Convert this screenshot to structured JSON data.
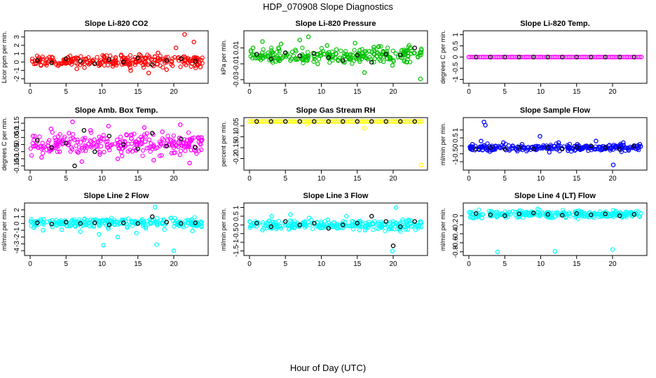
{
  "figure": {
    "title": "HDP_070908  Slope Diagnostics",
    "xlabel": "Hour of Day (UTC)"
  },
  "chart_data": [
    {
      "type": "scatter",
      "title": "Slope Li-820 CO2",
      "ylabel": "Licor ppm per min.",
      "xlim": [
        0,
        24
      ],
      "ylim": [
        -2.2,
        3.4
      ],
      "xticks": [
        0,
        5,
        10,
        15,
        20
      ],
      "yticks": [
        -2,
        -1,
        0,
        1,
        2,
        3
      ],
      "color": "#ff0000",
      "spread": 0.5,
      "series": [
        {
          "name": "primary",
          "color": "#ff0000",
          "x": [
            0.3,
            1.5,
            2.7,
            4.0,
            5.2,
            6.5,
            7.8,
            9.0,
            10.3,
            11.5,
            12.8,
            14.0,
            15.2,
            16.5,
            17.8,
            19.0,
            20.3,
            21.5,
            22.8,
            23.7
          ],
          "y": [
            0.1,
            -0.4,
            0.6,
            -0.3,
            0.2,
            -0.8,
            0.4,
            -0.2,
            0.7,
            -0.5,
            0.3,
            -1.0,
            0.9,
            -1.3,
            1.1,
            -0.9,
            1.7,
            3.3,
            2.4,
            -0.6
          ]
        },
        {
          "name": "reference",
          "color": "#000000",
          "x": [
            1,
            3,
            5,
            7,
            9,
            11,
            13,
            15,
            17,
            19,
            21,
            23
          ],
          "y": [
            0.2,
            -0.1,
            0.4,
            0.1,
            -0.2,
            0.3,
            0.0,
            0.5,
            -0.3,
            0.2,
            0.4,
            0.1
          ]
        }
      ]
    },
    {
      "type": "scatter",
      "title": "Slope Li-820 Pressure",
      "ylabel": "kPa per min.",
      "xlim": [
        0,
        24
      ],
      "ylim": [
        -0.031,
        0.028
      ],
      "xticks": [
        0,
        5,
        10,
        15,
        20
      ],
      "yticks": [
        -0.03,
        -0.01,
        0.01
      ],
      "color": "#00c000",
      "spread": 0.008,
      "series": [
        {
          "name": "primary",
          "color": "#00c000",
          "x": [
            0.5,
            1.8,
            3.1,
            4.4,
            5.7,
            7.0,
            8.2,
            9.5,
            10.8,
            12.1,
            13.4,
            14.7,
            16.0,
            17.3,
            18.6,
            19.9,
            21.2,
            22.5,
            23.8
          ],
          "y": [
            0.01,
            0.018,
            0.004,
            0.015,
            -0.006,
            0.02,
            0.024,
            -0.01,
            0.013,
            0.008,
            -0.004,
            0.016,
            -0.021,
            0.011,
            0.005,
            -0.012,
            0.007,
            0.003,
            -0.029
          ]
        },
        {
          "name": "reference",
          "color": "#000000",
          "x": [
            1,
            3,
            5,
            7,
            9,
            11,
            13,
            15,
            17,
            19,
            21,
            23
          ],
          "y": [
            0.002,
            -0.004,
            0.004,
            0.0,
            0.003,
            -0.002,
            -0.006,
            0.001,
            -0.008,
            0.002,
            0.001,
            0.01
          ]
        }
      ]
    },
    {
      "type": "scatter",
      "title": "Slope Li-820 Temp.",
      "ylabel": "degrees C per min.",
      "xlim": [
        0,
        24
      ],
      "ylim": [
        -1.05,
        1.05
      ],
      "xticks": [
        0,
        5,
        10,
        15,
        20
      ],
      "yticks": [
        -1.0,
        -0.5,
        0.0,
        0.5,
        1.0
      ],
      "color": "#ff00ff",
      "spread": 0.0,
      "series": [
        {
          "name": "primary",
          "color": "#ff00ff",
          "x": [
            0,
            2,
            4,
            6,
            8,
            10,
            12,
            14,
            16,
            18,
            20,
            22,
            24
          ],
          "y": [
            0,
            0,
            0,
            0,
            0,
            0,
            0,
            0,
            0,
            0,
            0,
            0,
            0
          ]
        },
        {
          "name": "reference",
          "color": "#000000",
          "x": [
            1,
            3,
            5,
            7,
            9,
            11,
            13,
            15,
            17,
            19,
            21,
            23
          ],
          "y": [
            0,
            0,
            0,
            0,
            0,
            0,
            0,
            0,
            0,
            0,
            0,
            0
          ]
        }
      ]
    },
    {
      "type": "scatter",
      "title": "Slope Amb. Box Temp.",
      "ylabel": "degrees C per min.",
      "xlim": [
        0,
        24
      ],
      "ylim": [
        -0.16,
        0.17
      ],
      "xticks": [
        0,
        5,
        10,
        15,
        20
      ],
      "yticks": [
        -0.15,
        -0.1,
        -0.05,
        0.0,
        0.05,
        0.1,
        0.15
      ],
      "color": "#ff00ff",
      "spread": 0.05,
      "series": [
        {
          "name": "primary",
          "color": "#ff00ff",
          "x": [
            0.4,
            1.6,
            2.9,
            4.1,
            5.4,
            5.9,
            7.2,
            8.4,
            9.7,
            10.9,
            12.2,
            13.4,
            14.7,
            15.9,
            17.2,
            18.4,
            19.7,
            20.9,
            22.2,
            23.4
          ],
          "y": [
            0.06,
            -0.09,
            0.11,
            -0.05,
            0.08,
            0.16,
            -0.12,
            0.1,
            -0.07,
            0.13,
            -0.1,
            0.07,
            -0.04,
            0.12,
            -0.11,
            0.09,
            -0.06,
            0.14,
            -0.13,
            0.05
          ]
        },
        {
          "name": "reference",
          "color": "#000000",
          "x": [
            1,
            3,
            5,
            6.2,
            7.5,
            9,
            11,
            13,
            15,
            17,
            19,
            21,
            23
          ],
          "y": [
            0.03,
            -0.02,
            0.01,
            -0.15,
            0.1,
            -0.05,
            0.06,
            0.0,
            -0.03,
            0.08,
            -0.01,
            0.04,
            -0.02
          ]
        }
      ]
    },
    {
      "type": "scatter",
      "title": "Slope Gas Stream RH",
      "ylabel": "percent per min.",
      "xlim": [
        0,
        24
      ],
      "ylim": [
        -0.24,
        -0.025
      ],
      "xticks": [
        0,
        5,
        10,
        15,
        20
      ],
      "yticks": [
        -0.2,
        -0.15,
        -0.1,
        -0.05
      ],
      "color": "#ffff00",
      "spread": 0.0,
      "series": [
        {
          "name": "primary",
          "color": "#ffff00",
          "x": [
            0.0,
            2.0,
            4.0,
            6.0,
            8.0,
            10.0,
            12.0,
            14.0,
            16.0,
            18.0,
            20.0,
            22.0,
            24.0,
            8.0,
            16.0,
            23.9
          ],
          "y": [
            -0.03,
            -0.03,
            -0.03,
            -0.03,
            -0.03,
            -0.03,
            -0.03,
            -0.03,
            -0.03,
            -0.03,
            -0.03,
            -0.03,
            -0.03,
            -0.04,
            -0.06,
            -0.23
          ]
        },
        {
          "name": "reference",
          "color": "#000000",
          "x": [
            1,
            3,
            5,
            7,
            9,
            11,
            13,
            15,
            17,
            19,
            21,
            23
          ],
          "y": [
            -0.03,
            -0.03,
            -0.03,
            -0.03,
            -0.03,
            -0.03,
            -0.03,
            -0.03,
            -0.03,
            -0.03,
            -0.03,
            -0.03
          ]
        }
      ]
    },
    {
      "type": "scatter",
      "title": "Slope Sample Flow",
      "ylabel": "ml/min per min.",
      "xlim": [
        0,
        24
      ],
      "ylim": [
        -1.35,
        1.6
      ],
      "xticks": [
        0,
        5,
        10,
        15,
        20
      ],
      "yticks": [
        -1.0,
        -0.5,
        0.0,
        0.5,
        1.0
      ],
      "color": "#0000ff",
      "spread": 0.15,
      "series": [
        {
          "name": "primary",
          "color": "#0000ff",
          "x": [
            0.5,
            1.7,
            2.1,
            2.3,
            3.5,
            4.8,
            6.1,
            7.4,
            8.7,
            9.9,
            11.2,
            12.5,
            13.8,
            15.1,
            16.4,
            17.7,
            19.0,
            20.1,
            21.5,
            22.8,
            23.8
          ],
          "y": [
            0.1,
            0.3,
            1.5,
            1.3,
            -0.2,
            0.2,
            0.0,
            0.1,
            -0.1,
            0.6,
            -0.4,
            0.2,
            -0.3,
            0.1,
            0.0,
            0.3,
            -0.2,
            -1.2,
            0.2,
            -0.1,
            0.1
          ]
        },
        {
          "name": "reference",
          "color": "#000000",
          "x": [
            1,
            3,
            5,
            7,
            9,
            11,
            13,
            15,
            17,
            19,
            21,
            23
          ],
          "y": [
            -0.2,
            -0.1,
            -0.2,
            -0.1,
            -0.2,
            -0.1,
            -0.2,
            -0.1,
            0.0,
            -0.1,
            -0.2,
            0.0
          ]
        }
      ]
    },
    {
      "type": "scatter",
      "title": "Slope Line 2 Flow",
      "ylabel": "ml/min per min.",
      "xlim": [
        0,
        24
      ],
      "ylim": [
        -4.3,
        2.6
      ],
      "xticks": [
        0,
        5,
        10,
        15,
        20
      ],
      "yticks": [
        -4,
        -3,
        -2,
        -1,
        0,
        1,
        2
      ],
      "color": "#00ffff",
      "spread": 0.5,
      "series": [
        {
          "name": "primary",
          "color": "#00ffff",
          "x": [
            0.5,
            1.8,
            3.1,
            4.4,
            5.7,
            7.0,
            8.3,
            9.6,
            10.2,
            10.9,
            12.2,
            13.5,
            14.8,
            16.1,
            17.4,
            17.6,
            18.7,
            20.0,
            21.3,
            22.6,
            23.8
          ],
          "y": [
            -0.6,
            -1.0,
            -0.5,
            -0.9,
            -0.3,
            -1.2,
            -0.4,
            -1.6,
            -3.2,
            -0.8,
            -2.0,
            -0.6,
            -1.4,
            -0.7,
            2.4,
            -3.1,
            -0.9,
            -4.0,
            -0.5,
            -1.1,
            -0.4
          ]
        },
        {
          "name": "reference",
          "color": "#000000",
          "x": [
            1,
            3,
            5,
            7,
            9,
            11,
            13,
            15,
            17,
            19,
            21,
            23
          ],
          "y": [
            0.1,
            -0.1,
            0.2,
            0.0,
            0.1,
            -0.2,
            0.1,
            0.0,
            1.0,
            0.2,
            0.0,
            0.1
          ]
        }
      ]
    },
    {
      "type": "scatter",
      "title": "Slope Line 3 Flow",
      "ylabel": "ml/min per min.",
      "xlim": [
        0,
        24
      ],
      "ylim": [
        -1.6,
        1.1
      ],
      "xticks": [
        0,
        5,
        10,
        15,
        20
      ],
      "yticks": [
        -1.5,
        -1.0,
        -0.5,
        0.0,
        0.5,
        1.0
      ],
      "color": "#00ffff",
      "spread": 0.2,
      "series": [
        {
          "name": "primary",
          "color": "#00ffff",
          "x": [
            0.5,
            1.8,
            3.1,
            4.4,
            5.7,
            7.0,
            8.3,
            9.6,
            10.9,
            12.2,
            13.5,
            14.8,
            16.1,
            17.4,
            18.7,
            19.9,
            20.4,
            21.3,
            22.6,
            23.8
          ],
          "y": [
            0.1,
            -0.3,
            0.5,
            -0.2,
            0.6,
            0.0,
            0.4,
            -0.1,
            0.3,
            -0.2,
            0.5,
            0.1,
            -0.3,
            0.2,
            0.0,
            -1.5,
            1.0,
            0.3,
            -0.1,
            0.2
          ]
        },
        {
          "name": "reference",
          "color": "#000000",
          "x": [
            1,
            3,
            5,
            7,
            9,
            11,
            13,
            15,
            17,
            19,
            20,
            21,
            23
          ],
          "y": [
            0.1,
            -0.1,
            0.2,
            0.0,
            0.1,
            -0.2,
            0.0,
            0.1,
            0.5,
            0.2,
            -1.2,
            -0.1,
            0.2
          ]
        }
      ]
    },
    {
      "type": "scatter",
      "title": "Slope Line 4 (LT) Flow",
      "ylabel": "ml/min per min.",
      "xlim": [
        0,
        24
      ],
      "ylim": [
        -0.82,
        0.22
      ],
      "xticks": [
        0,
        5,
        10,
        15,
        20
      ],
      "yticks": [
        -0.8,
        -0.6,
        -0.4,
        -0.2,
        0.0
      ],
      "color": "#00ffff",
      "spread": 0.06,
      "series": [
        {
          "name": "primary",
          "color": "#00ffff",
          "x": [
            0.5,
            1.8,
            3.1,
            4.0,
            4.4,
            5.7,
            7.0,
            8.3,
            9.6,
            10.9,
            12.0,
            12.2,
            13.5,
            14.8,
            16.1,
            17.4,
            18.7,
            20.0,
            20.1,
            21.3,
            22.6,
            23.8
          ],
          "y": [
            0.05,
            -0.05,
            0.1,
            -0.8,
            0.02,
            0.08,
            -0.03,
            0.06,
            0.15,
            0.0,
            -0.79,
            0.07,
            -0.02,
            0.09,
            0.03,
            -0.04,
            0.05,
            -0.75,
            0.12,
            0.01,
            0.08,
            -0.02
          ]
        },
        {
          "name": "reference",
          "color": "#000000",
          "x": [
            1,
            3,
            5,
            7,
            9,
            11,
            13,
            15,
            17,
            19,
            21,
            23
          ],
          "y": [
            0.05,
            0.02,
            0.0,
            0.04,
            0.06,
            0.03,
            0.01,
            0.05,
            0.02,
            0.04,
            0.0,
            0.03
          ]
        }
      ]
    }
  ]
}
